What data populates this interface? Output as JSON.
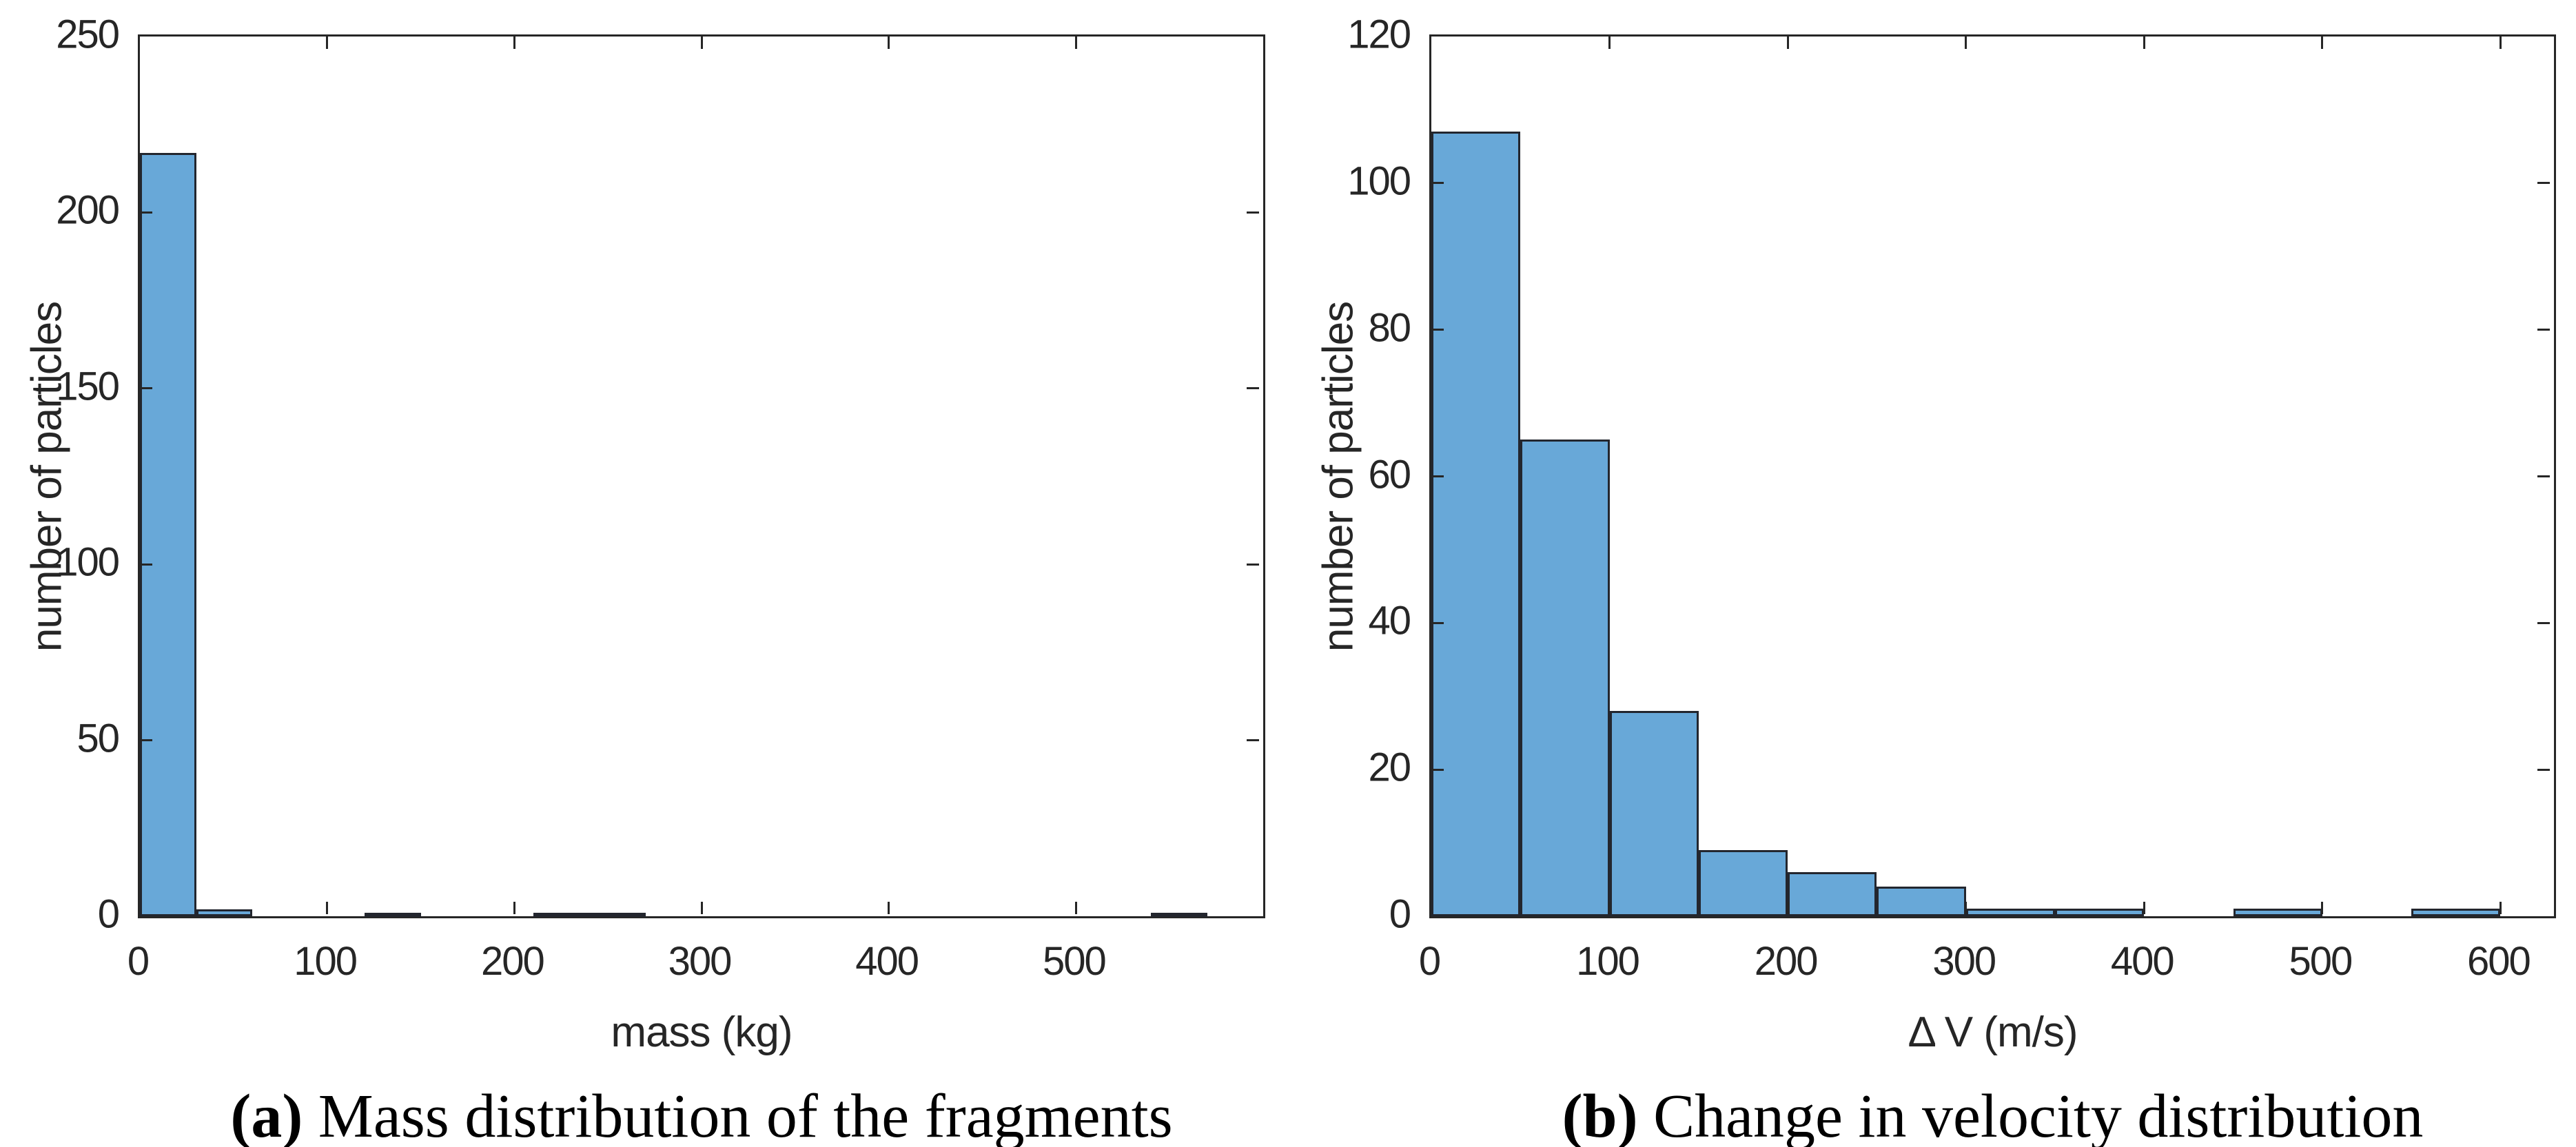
{
  "figure": {
    "background": "#ffffff",
    "colors": {
      "bar_fill": "#68a8d8",
      "bar_edge": "#23262e",
      "axis": "#262626",
      "tick_text": "#262626",
      "caption_text": "#000000"
    }
  },
  "chart_data": [
    {
      "id": "mass-distribution-histogram",
      "type": "bar",
      "title": "",
      "xlabel": "mass (kg)",
      "ylabel": "number of particles",
      "xlim": [
        0,
        600
      ],
      "ylim": [
        0,
        250
      ],
      "xticks": [
        0,
        100,
        200,
        300,
        400,
        500
      ],
      "yticks": [
        0,
        50,
        100,
        150,
        200,
        250
      ],
      "grid": false,
      "legend": "none",
      "bin_start": 0,
      "bin_width": 30,
      "counts": [
        217,
        2,
        0,
        0,
        1,
        0,
        0,
        1,
        1,
        0,
        0,
        0,
        0,
        0,
        0,
        0,
        0,
        0,
        1,
        0
      ],
      "caption_label": "(a)",
      "caption_text": " Mass distribution of the fragments"
    },
    {
      "id": "delta-v-distribution-histogram",
      "type": "bar",
      "title": "",
      "xlabel": "Δ V (m/s)",
      "ylabel": "number of particles",
      "xlim": [
        0,
        630
      ],
      "ylim": [
        0,
        120
      ],
      "xticks": [
        0,
        100,
        200,
        300,
        400,
        500,
        600
      ],
      "yticks": [
        0,
        20,
        40,
        60,
        80,
        100,
        120
      ],
      "grid": false,
      "legend": "none",
      "bin_start": 0,
      "bin_width": 50,
      "counts": [
        107,
        65,
        28,
        9,
        6,
        4,
        1,
        1,
        0,
        1,
        0,
        1
      ],
      "caption_label": "(b)",
      "caption_text": " Change in velocity distribution"
    }
  ]
}
